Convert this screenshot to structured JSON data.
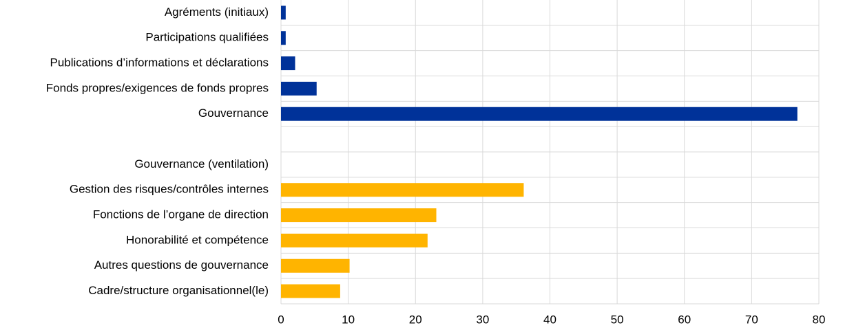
{
  "chart_data": {
    "type": "hbar",
    "categories": [
      "Agréments (initiaux)",
      "Participations qualifiées",
      "Publications d’informations et déclarations",
      "Fonds propres/exigences de fonds propres",
      "Gouvernance",
      null,
      "Gouvernance (ventilation)",
      "Gestion des risques/contrôles internes",
      "Fonctions de l’organe de direction",
      "Honorabilité et compétence",
      "Autres questions de gouvernance",
      "Cadre/structure organisationnel(le)"
    ],
    "values": [
      0.7,
      0.7,
      2.1,
      5.3,
      76.8,
      null,
      null,
      36.1,
      23.1,
      21.8,
      10.2,
      8.8
    ],
    "colors": [
      "#003299",
      "#003299",
      "#003299",
      "#003299",
      "#003299",
      null,
      null,
      "#ffb400",
      "#ffb400",
      "#ffb400",
      "#ffb400",
      "#ffb400"
    ],
    "xlim": [
      0,
      80
    ],
    "xticks": [
      0,
      10,
      20,
      30,
      40,
      50,
      60,
      70,
      80
    ],
    "grid": true
  }
}
